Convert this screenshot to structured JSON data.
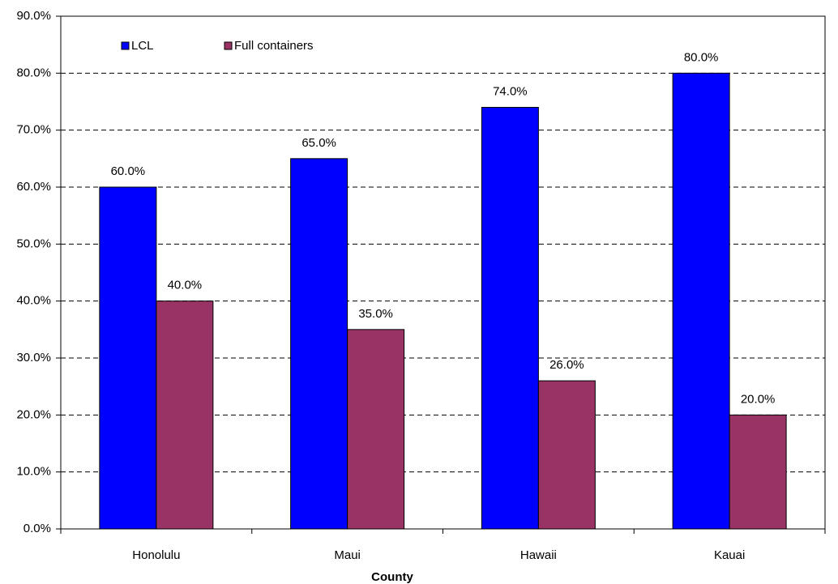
{
  "chart_data": {
    "type": "bar",
    "x_label": "County",
    "categories": [
      "Honolulu",
      "Maui",
      "Hawaii",
      "Kauai"
    ],
    "series": [
      {
        "name": "LCL",
        "color": "#0000ff",
        "values": [
          60,
          65,
          74,
          80
        ],
        "value_labels": [
          "60.0%",
          "65.0%",
          "74.0%",
          "80.0%"
        ]
      },
      {
        "name": "Full containers",
        "color": "#993366",
        "values": [
          40,
          35,
          26,
          20
        ],
        "value_labels": [
          "40.0%",
          "35.0%",
          "26.0%",
          "20.0%"
        ]
      }
    ],
    "ylim": [
      0,
      90
    ],
    "yticks": [
      {
        "value": 0,
        "label": "0.0%"
      },
      {
        "value": 10,
        "label": "10.0%"
      },
      {
        "value": 20,
        "label": "20.0%"
      },
      {
        "value": 30,
        "label": "30.0%"
      },
      {
        "value": 40,
        "label": "40.0%"
      },
      {
        "value": 50,
        "label": "50.0%"
      },
      {
        "value": 60,
        "label": "60.0%"
      },
      {
        "value": 70,
        "label": "70.0%"
      },
      {
        "value": 80,
        "label": "80.0%"
      },
      {
        "value": 90,
        "label": "90.0%"
      }
    ],
    "grid": true,
    "legend": "top-left"
  }
}
